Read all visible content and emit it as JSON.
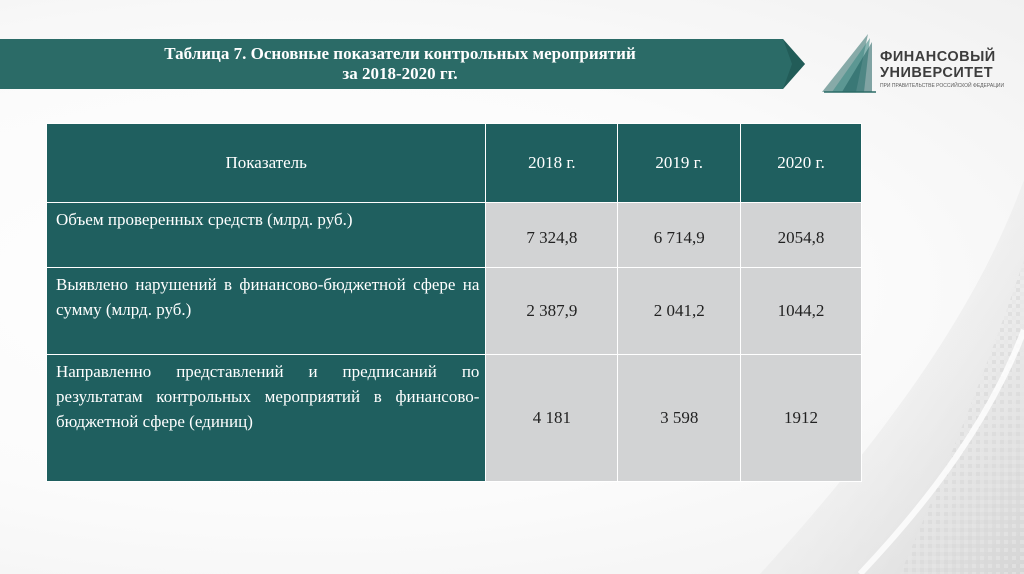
{
  "title": {
    "line1": "Таблица 7. Основные показатели контрольных мероприятий",
    "line2": "за 2018-2020 гг."
  },
  "logo": {
    "line1": "ФИНАНСОВЫЙ",
    "line2": "УНИВЕРСИТЕТ",
    "sub": "ПРИ ПРАВИТЕЛЬСТВЕ РОССИЙСКОЙ ФЕДЕРАЦИИ"
  },
  "colors": {
    "header_teal": "#1f5f5f",
    "cell_gray": "#d2d3d4",
    "banner_teal": "#2b6b67"
  },
  "table": {
    "headers": [
      "Показатель",
      "2018 г.",
      "2019 г.",
      "2020 г."
    ],
    "rows": [
      {
        "indicator": "Объем проверенных средств (млрд. руб.)",
        "values": [
          "7 324,8",
          "6 714,9",
          "2054,8"
        ]
      },
      {
        "indicator": "Выявлено нарушений в финансово-бюджетной сфере на сумму (млрд. руб.)",
        "values": [
          "2 387,9",
          "2 041,2",
          "1044,2"
        ]
      },
      {
        "indicator": "Направленно представлений и предписаний по результатам контрольных мероприятий в финансово-бюджетной сфере (единиц)",
        "values": [
          "4 181",
          "3 598",
          "1912"
        ]
      }
    ]
  }
}
